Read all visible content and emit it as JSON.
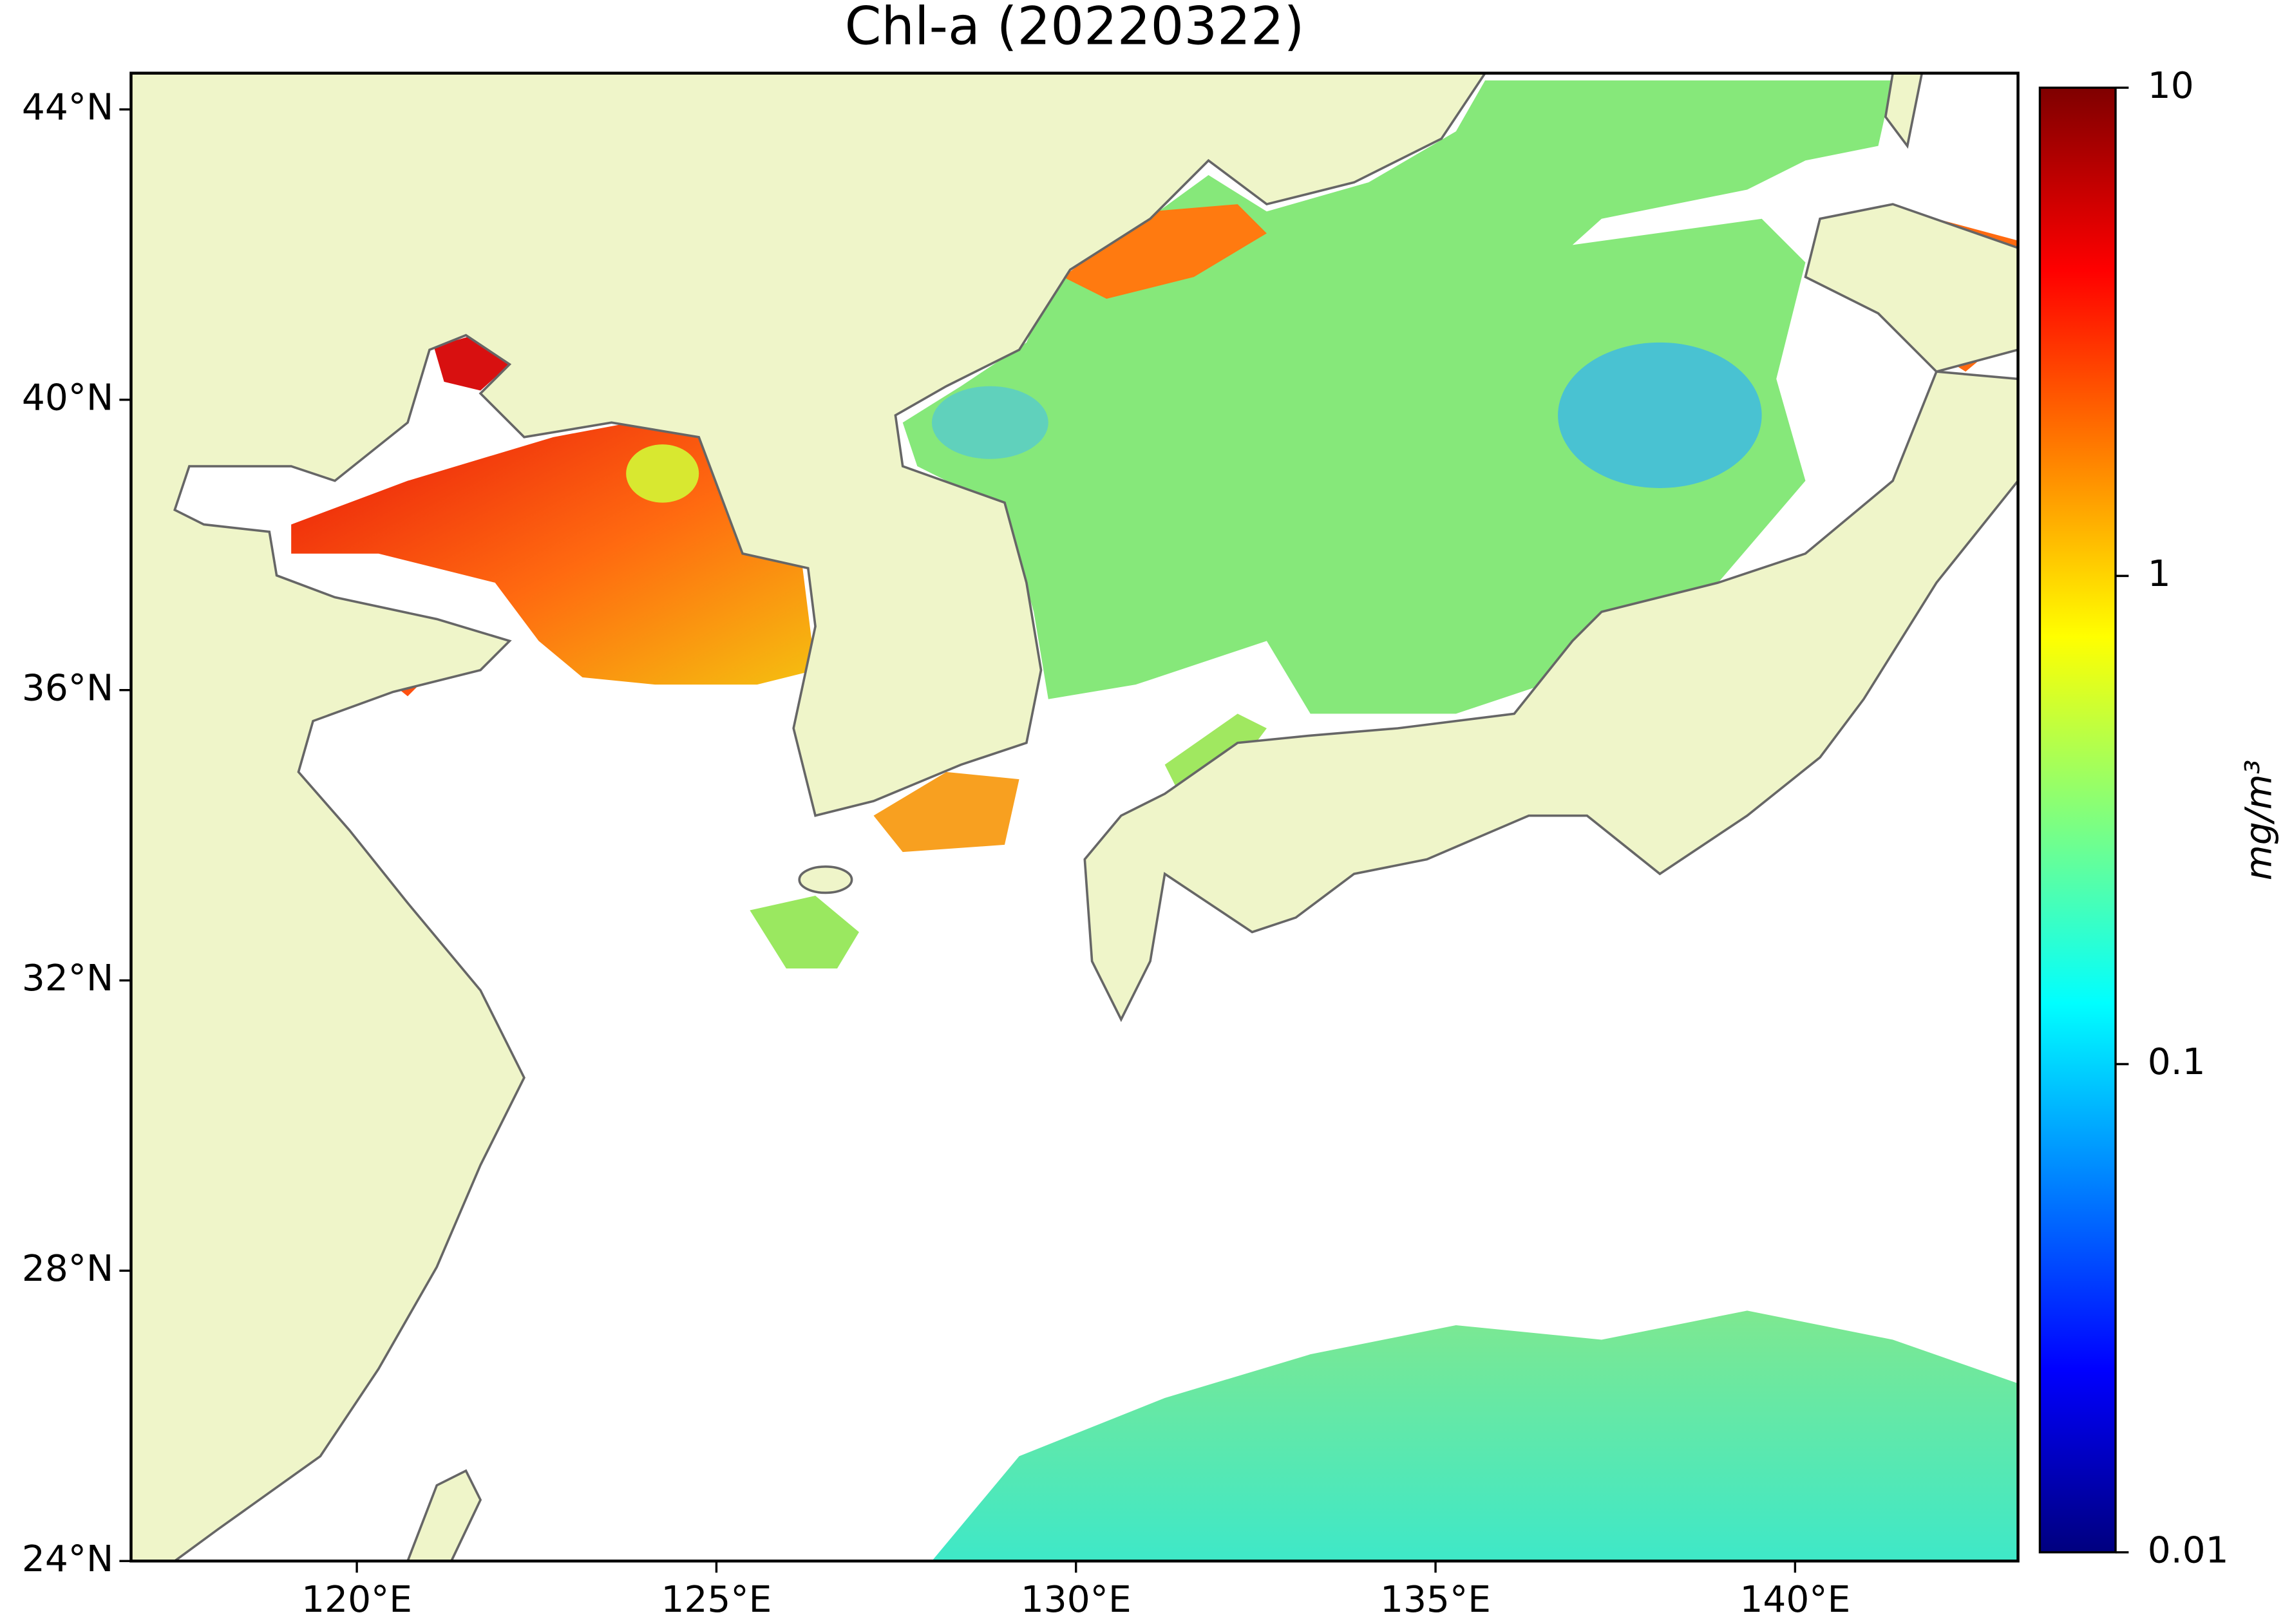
{
  "chart_data": {
    "type": "map",
    "title": "Chl-a (20220322)",
    "xlim": [
      116.86,
      143.1
    ],
    "ylim": [
      24,
      44.5
    ],
    "xticks": [
      {
        "value": 120,
        "label": "120°E"
      },
      {
        "value": 125,
        "label": "125°E"
      },
      {
        "value": 130,
        "label": "130°E"
      },
      {
        "value": 135,
        "label": "135°E"
      },
      {
        "value": 140,
        "label": "140°E"
      }
    ],
    "yticks": [
      {
        "value": 24,
        "label": "24°N"
      },
      {
        "value": 28,
        "label": "28°N"
      },
      {
        "value": 32,
        "label": "32°N"
      },
      {
        "value": 36,
        "label": "36°N"
      },
      {
        "value": 40,
        "label": "40°N"
      },
      {
        "value": 44,
        "label": "44°N"
      }
    ],
    "colorbar": {
      "label": "mg/m³",
      "log": true,
      "clim": [
        0.01,
        10
      ],
      "ticks": [
        0.01,
        0.1,
        1,
        10
      ],
      "colors": [
        "#00007f",
        "#0000ff",
        "#007fff",
        "#00ffff",
        "#7fff7f",
        "#ffff00",
        "#ff7f00",
        "#ff0000",
        "#7f0000"
      ]
    }
  }
}
